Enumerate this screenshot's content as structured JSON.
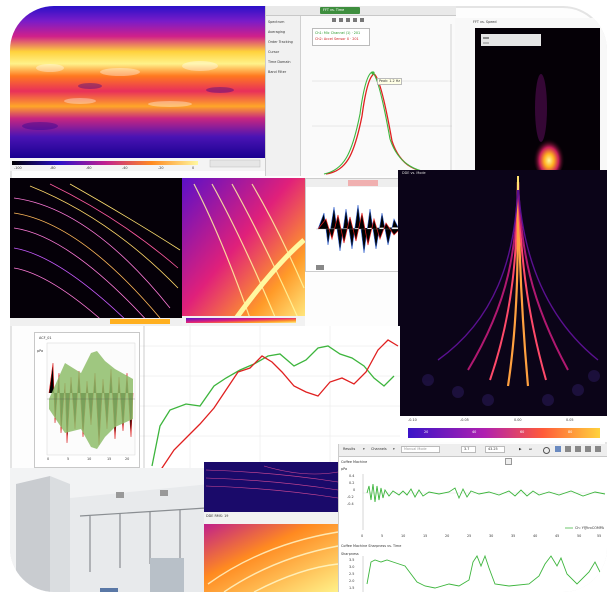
{
  "spectrogram_top": {
    "colorbar_ticks": [
      "-100",
      "-80",
      "-60",
      "-40",
      "-20",
      "0"
    ]
  },
  "ui_mid": {
    "tab_label": "FFT vs. Time",
    "side_items": [
      "Spectrum",
      "Averaging",
      "Order Tracking",
      "Cursor",
      "Time Domain",
      "Band Filter"
    ],
    "legend": [
      "Ch1: Mic Channel (1) · 201",
      "Ch2: Accel Sensor X · 201"
    ],
    "peak_label": "Peak: 1.2 Hz"
  },
  "top_right": {
    "title": "FFT vs. Speed"
  },
  "waterfall": {
    "title": "DDE vs. Mode",
    "x_ticks": [
      "-0.10",
      "-0.05",
      "0.00",
      "0.05"
    ],
    "colorbar_ticks": [
      "20",
      "40",
      "60",
      "80"
    ]
  },
  "trace_plot": {
    "title": "ACF_01",
    "unit": "pPa",
    "x_ticks": [
      "0",
      "5",
      "10",
      "15",
      "20"
    ]
  },
  "small_spec": {
    "title": "DDE RMS: 19"
  },
  "toolbar": {
    "results_label": "Results",
    "channels_label": "Channels",
    "mode_value": "Manual Mode",
    "field1": "3.7",
    "field2": "43.25"
  },
  "chart_top": {
    "title": "Coffee Machine",
    "unit": "pPa",
    "y_ticks": [
      "0.4",
      "0.2",
      "0",
      "-0.2",
      "-0.4"
    ],
    "x_ticks": [
      "0",
      "5",
      "10",
      "15",
      "20",
      "25",
      "30",
      "35",
      "40",
      "45",
      "50",
      "55"
    ],
    "legend": "Ch: Y@trxCOMPA"
  },
  "chart_bottom": {
    "title": "Coffee Machine Sharpness vs. Time",
    "unit": "Sharpness",
    "y_ticks": [
      "3.5",
      "3.0",
      "2.5",
      "2.0",
      "1.5"
    ]
  },
  "colors": {
    "accent_green": "#3db53d",
    "accent_red": "#e02020",
    "spec_hot": "#ffd23c",
    "spec_cold": "#1a0090"
  }
}
